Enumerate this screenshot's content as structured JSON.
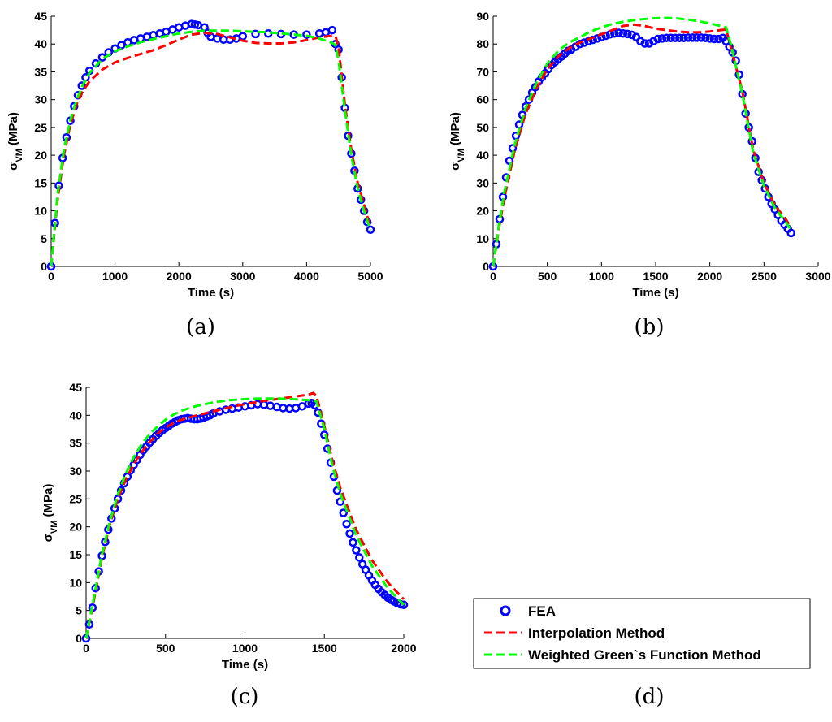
{
  "legend": {
    "items": [
      {
        "label": "FEA",
        "color": "#0000ff",
        "style": "marker-circle"
      },
      {
        "label": "Interpolation Method",
        "color": "#ff0000",
        "style": "dashed"
      },
      {
        "label": "Weighted Green`s Function Method",
        "color": "#00ff00",
        "style": "dashed"
      }
    ]
  },
  "captions": {
    "a": "(a)",
    "b": "(b)",
    "c": "(c)",
    "d": "(d)"
  },
  "chart_data": [
    {
      "id": "a",
      "type": "line",
      "xlabel": "Time (s)",
      "ylabel": "σVM (MPa)",
      "xlim": [
        0,
        5000
      ],
      "ylim": [
        0,
        45
      ],
      "xticks": [
        0,
        1000,
        2000,
        3000,
        4000,
        5000
      ],
      "yticks": [
        0,
        5,
        10,
        15,
        20,
        25,
        30,
        35,
        40,
        45
      ],
      "series": [
        {
          "name": "FEA",
          "x": [
            0,
            60,
            120,
            180,
            240,
            300,
            360,
            420,
            480,
            540,
            600,
            700,
            800,
            900,
            1000,
            1100,
            1200,
            1300,
            1400,
            1500,
            1600,
            1700,
            1800,
            1900,
            2000,
            2100,
            2200,
            2250,
            2300,
            2400,
            2450,
            2500,
            2600,
            2700,
            2800,
            2900,
            3000,
            3200,
            3400,
            3600,
            3800,
            4000,
            4200,
            4300,
            4400,
            4450,
            4500,
            4550,
            4600,
            4650,
            4700,
            4750,
            4800,
            4850,
            4900,
            4950,
            5000
          ],
          "y": [
            0,
            7.8,
            14.5,
            19.5,
            23.2,
            26.2,
            28.8,
            30.8,
            32.5,
            34,
            35.2,
            36.5,
            37.6,
            38.5,
            39.2,
            39.8,
            40.3,
            40.7,
            41,
            41.3,
            41.6,
            41.9,
            42.2,
            42.6,
            43,
            43.3,
            43.6,
            43.5,
            43.4,
            43,
            42,
            41.3,
            41,
            40.8,
            40.8,
            41,
            41.4,
            41.8,
            41.9,
            41.8,
            41.7,
            41.7,
            41.9,
            42.1,
            42.5,
            40,
            39,
            34,
            28.5,
            23.5,
            20.3,
            17.2,
            14,
            12,
            10,
            8,
            6.6
          ]
        },
        {
          "name": "Interpolation Method",
          "x": [
            0,
            100,
            200,
            300,
            400,
            500,
            600,
            800,
            1000,
            1200,
            1400,
            1600,
            1800,
            2000,
            2200,
            2400,
            2600,
            2800,
            3000,
            3200,
            3400,
            3600,
            3800,
            4000,
            4200,
            4400,
            4450,
            4500,
            4600,
            4700,
            4800,
            4900,
            5000
          ],
          "y": [
            0,
            12,
            20,
            25.5,
            29.2,
            31.6,
            33.3,
            35.4,
            36.7,
            37.5,
            38.2,
            38.9,
            39.8,
            40.8,
            41.7,
            42,
            41.8,
            41.2,
            40.6,
            40.2,
            40.1,
            40.1,
            40.3,
            40.7,
            41.2,
            41.5,
            41.5,
            39.5,
            29,
            21,
            15,
            11,
            7
          ]
        },
        {
          "name": "Weighted Green`s Function Method",
          "x": [
            0,
            100,
            200,
            300,
            400,
            500,
            600,
            800,
            1000,
            1200,
            1400,
            1600,
            1800,
            2000,
            2200,
            2400,
            2600,
            2800,
            3000,
            3200,
            3400,
            3600,
            3800,
            4000,
            4200,
            4400,
            4450,
            4500,
            4600,
            4700,
            4800,
            4900,
            5000
          ],
          "y": [
            0,
            13,
            21,
            26.3,
            30,
            32.7,
            34.8,
            37.3,
            38.7,
            39.6,
            40.3,
            40.9,
            41.4,
            41.9,
            42.2,
            42.4,
            42.4,
            42.4,
            42.3,
            42.2,
            42.1,
            41.9,
            41.7,
            41.5,
            41,
            40.2,
            39.8,
            37,
            28,
            20,
            14,
            10,
            6.5
          ]
        }
      ]
    },
    {
      "id": "b",
      "type": "line",
      "xlabel": "Time (s)",
      "ylabel": "σVM (MPa)",
      "xlim": [
        0,
        3000
      ],
      "ylim": [
        0,
        90
      ],
      "xticks": [
        0,
        500,
        1000,
        1500,
        2000,
        2500,
        3000
      ],
      "yticks": [
        0,
        10,
        20,
        30,
        40,
        50,
        60,
        70,
        80,
        90
      ],
      "series": [
        {
          "name": "FEA",
          "x": [
            0,
            30,
            60,
            90,
            120,
            150,
            180,
            210,
            240,
            270,
            300,
            330,
            360,
            390,
            420,
            450,
            480,
            510,
            540,
            570,
            600,
            630,
            660,
            690,
            720,
            760,
            800,
            840,
            880,
            920,
            960,
            1000,
            1040,
            1080,
            1120,
            1160,
            1200,
            1240,
            1280,
            1320,
            1360,
            1400,
            1440,
            1480,
            1520,
            1560,
            1600,
            1640,
            1680,
            1720,
            1760,
            1800,
            1840,
            1880,
            1920,
            1960,
            2000,
            2040,
            2080,
            2120,
            2150,
            2180,
            2210,
            2240,
            2270,
            2300,
            2330,
            2360,
            2390,
            2420,
            2450,
            2480,
            2510,
            2540,
            2570,
            2600,
            2630,
            2660,
            2690,
            2720,
            2750
          ],
          "y": [
            0,
            8,
            17,
            25,
            32,
            38,
            42.5,
            47,
            51,
            54.5,
            57.5,
            60,
            62.5,
            64.5,
            66.5,
            68,
            69.5,
            71,
            72.5,
            73.5,
            74.5,
            75.5,
            76.5,
            77.5,
            78,
            79,
            80,
            80.5,
            81,
            81.5,
            82,
            82.5,
            83,
            83.5,
            83.8,
            84,
            83.8,
            83.6,
            83.3,
            82.5,
            81,
            80.2,
            80.2,
            81,
            81.8,
            82,
            82.2,
            82.2,
            82.2,
            82.2,
            82.2,
            82.3,
            82.3,
            82.3,
            82.3,
            82.2,
            82,
            81.8,
            81.8,
            82.2,
            81,
            79,
            77,
            74,
            69,
            62,
            55,
            50,
            45,
            39,
            34,
            31,
            28,
            25,
            22.5,
            20.5,
            18.5,
            16.5,
            15,
            13.5,
            12
          ]
        },
        {
          "name": "Interpolation Method",
          "x": [
            0,
            50,
            100,
            200,
            300,
            400,
            500,
            600,
            700,
            800,
            900,
            1000,
            1100,
            1200,
            1300,
            1400,
            1500,
            1600,
            1700,
            1800,
            1900,
            2000,
            2100,
            2150,
            2200,
            2300,
            2400,
            2500,
            2600,
            2700,
            2750
          ],
          "y": [
            0,
            13,
            24,
            42,
            55,
            64,
            71,
            75.5,
            78.5,
            80.5,
            82,
            83.5,
            85,
            86.5,
            87,
            86.5,
            85.5,
            85,
            84.5,
            84.2,
            84.2,
            84.5,
            85,
            85.2,
            78,
            63,
            42,
            30,
            22,
            17,
            14
          ]
        },
        {
          "name": "Weighted Green`s Function Method",
          "x": [
            0,
            50,
            100,
            200,
            300,
            400,
            500,
            600,
            700,
            800,
            900,
            1000,
            1100,
            1200,
            1300,
            1400,
            1500,
            1600,
            1700,
            1800,
            1900,
            2000,
            2100,
            2150,
            2200,
            2300,
            2400,
            2500,
            2600,
            2700,
            2750
          ],
          "y": [
            0,
            14,
            26,
            44,
            57,
            66,
            73,
            77.5,
            80.5,
            82.5,
            84.5,
            86,
            87.2,
            88,
            88.6,
            89,
            89.3,
            89.4,
            89.2,
            88.8,
            88.2,
            87.4,
            86.5,
            86,
            79,
            62,
            41,
            29,
            21,
            16,
            13
          ]
        }
      ]
    },
    {
      "id": "c",
      "type": "line",
      "xlabel": "Time (s)",
      "ylabel": "σVM (MPa)",
      "xlim": [
        0,
        2000
      ],
      "ylim": [
        0,
        45
      ],
      "xticks": [
        0,
        500,
        1000,
        1500,
        2000
      ],
      "yticks": [
        0,
        5,
        10,
        15,
        20,
        25,
        30,
        35,
        40,
        45
      ],
      "series": [
        {
          "name": "FEA",
          "x": [
            0,
            20,
            40,
            60,
            80,
            100,
            120,
            140,
            160,
            180,
            200,
            220,
            240,
            260,
            280,
            300,
            320,
            340,
            360,
            380,
            400,
            420,
            440,
            460,
            480,
            500,
            520,
            540,
            560,
            580,
            600,
            620,
            640,
            660,
            680,
            700,
            720,
            740,
            760,
            780,
            800,
            840,
            880,
            920,
            960,
            1000,
            1040,
            1080,
            1120,
            1160,
            1200,
            1240,
            1280,
            1320,
            1360,
            1400,
            1420,
            1440,
            1460,
            1480,
            1500,
            1520,
            1540,
            1560,
            1580,
            1600,
            1620,
            1640,
            1660,
            1680,
            1700,
            1720,
            1740,
            1760,
            1780,
            1800,
            1820,
            1840,
            1860,
            1880,
            1900,
            1920,
            1940,
            1960,
            1980,
            2000
          ],
          "y": [
            0,
            2.5,
            5.5,
            9,
            12,
            14.8,
            17.3,
            19.5,
            21.5,
            23.3,
            25,
            26.5,
            27.8,
            29,
            30.1,
            31.1,
            32,
            32.9,
            33.7,
            34.4,
            35.1,
            35.7,
            36.3,
            36.8,
            37.3,
            37.7,
            38.1,
            38.5,
            38.8,
            39.1,
            39.3,
            39.4,
            39.5,
            39.4,
            39.3,
            39.3,
            39.4,
            39.6,
            39.8,
            40,
            40.3,
            40.7,
            41,
            41.2,
            41.4,
            41.6,
            41.8,
            42,
            41.9,
            41.7,
            41.5,
            41.3,
            41.2,
            41.3,
            41.6,
            42.1,
            42.2,
            41.8,
            40.5,
            38.5,
            36.5,
            34,
            31.5,
            29,
            26.5,
            24.5,
            22.5,
            20.5,
            18.8,
            17.2,
            15.8,
            14.5,
            13.3,
            12.3,
            11.3,
            10.4,
            9.6,
            8.9,
            8.3,
            7.8,
            7.3,
            6.9,
            6.6,
            6.3,
            6.1,
            6
          ]
        },
        {
          "name": "Interpolation Method",
          "x": [
            0,
            50,
            100,
            150,
            200,
            250,
            300,
            350,
            400,
            450,
            500,
            550,
            600,
            650,
            700,
            800,
            900,
            1000,
            1100,
            1200,
            1300,
            1400,
            1430,
            1450,
            1500,
            1550,
            1600,
            1700,
            1800,
            1900,
            2000
          ],
          "y": [
            0,
            7,
            14.5,
            20.5,
            25,
            28.5,
            31.2,
            33.4,
            35.2,
            36.7,
            37.8,
            38.6,
            39.2,
            39.6,
            40,
            40.7,
            41.4,
            42,
            42.5,
            42.9,
            43.3,
            43.7,
            44,
            43.5,
            38,
            32,
            27,
            19.5,
            14,
            10,
            7
          ]
        },
        {
          "name": "Weighted Green`s Function Method",
          "x": [
            0,
            50,
            100,
            150,
            200,
            250,
            300,
            350,
            400,
            450,
            500,
            550,
            600,
            650,
            700,
            800,
            900,
            1000,
            1100,
            1200,
            1300,
            1400,
            1450,
            1500,
            1550,
            1600,
            1700,
            1800,
            1900,
            2000
          ],
          "y": [
            0,
            7.5,
            15,
            21,
            25.8,
            29.5,
            32.5,
            34.8,
            36.6,
            38,
            39.2,
            40.1,
            40.8,
            41.3,
            41.7,
            42.3,
            42.7,
            42.9,
            43,
            43,
            42.9,
            42.7,
            42.5,
            37.5,
            31,
            26,
            18.5,
            13,
            9,
            6
          ]
        }
      ]
    }
  ]
}
